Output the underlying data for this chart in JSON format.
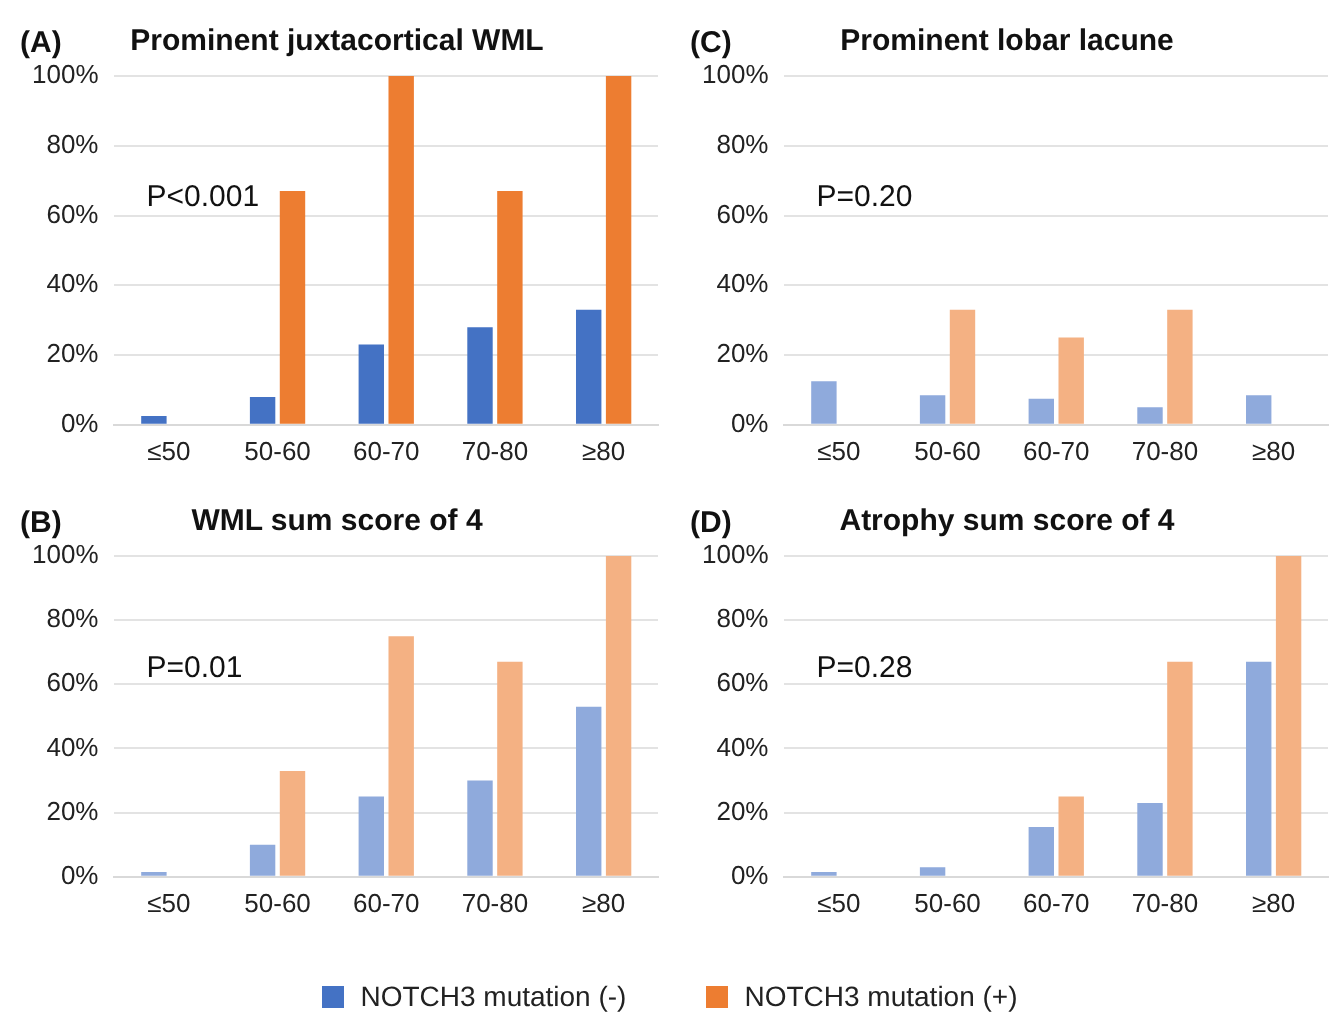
{
  "chart_data": [
    {
      "type": "bar",
      "title": "Prominent juxtacortical WML",
      "annotations": [
        "(A)",
        "P<0.001"
      ],
      "categories": [
        "≤50",
        "50-60",
        "60-70",
        "70-80",
        "≥80"
      ],
      "legend": "bottom",
      "grid": "y",
      "ylim": [
        0,
        100
      ],
      "yticks": [
        {
          "value": 0,
          "label": "0%"
        },
        {
          "value": 20,
          "label": "20%"
        },
        {
          "value": 40,
          "label": "40%"
        },
        {
          "value": 60,
          "label": "60%"
        },
        {
          "value": 80,
          "label": "80%"
        },
        {
          "value": 100,
          "label": "100%"
        }
      ],
      "series": [
        {
          "name": "NOTCH3 mutation (-)",
          "color": "#4472c4",
          "values": [
            2.5,
            8,
            23,
            28,
            33
          ]
        },
        {
          "name": "NOTCH3 mutation (+)",
          "color": "#ed7d31",
          "values": [
            0,
            67,
            100,
            67,
            100
          ]
        }
      ]
    },
    {
      "type": "bar",
      "title": "Prominent lobar lacune",
      "annotations": [
        "(C)",
        "P=0.20"
      ],
      "categories": [
        "≤50",
        "50-60",
        "60-70",
        "70-80",
        "≥80"
      ],
      "grid": "y",
      "ylim": [
        0,
        100
      ],
      "yticks": [
        {
          "value": 0,
          "label": "0%"
        },
        {
          "value": 20,
          "label": "20%"
        },
        {
          "value": 40,
          "label": "40%"
        },
        {
          "value": 60,
          "label": "60%"
        },
        {
          "value": 80,
          "label": "80%"
        },
        {
          "value": 100,
          "label": "100%"
        }
      ],
      "series": [
        {
          "color": "#8faadc",
          "values": [
            12.5,
            8.5,
            7.5,
            5,
            8.5
          ]
        },
        {
          "color": "#f4b183",
          "values": [
            0,
            33,
            25,
            33,
            0
          ]
        }
      ]
    },
    {
      "type": "bar",
      "title": "WML sum score of 4",
      "annotations": [
        "(B)",
        "P=0.01"
      ],
      "categories": [
        "≤50",
        "50-60",
        "60-70",
        "70-80",
        "≥80"
      ],
      "grid": "y",
      "ylim": [
        0,
        100
      ],
      "yticks": [
        {
          "value": 0,
          "label": "0%"
        },
        {
          "value": 20,
          "label": "20%"
        },
        {
          "value": 40,
          "label": "40%"
        },
        {
          "value": 60,
          "label": "60%"
        },
        {
          "value": 80,
          "label": "80%"
        },
        {
          "value": 100,
          "label": "100%"
        }
      ],
      "series": [
        {
          "color": "#8faadc",
          "values": [
            1.5,
            10,
            25,
            30,
            53
          ]
        },
        {
          "color": "#f4b183",
          "values": [
            0,
            33,
            75,
            67,
            100
          ]
        }
      ]
    },
    {
      "type": "bar",
      "title": "Atrophy sum score of 4",
      "annotations": [
        "(D)",
        "P=0.28"
      ],
      "categories": [
        "≤50",
        "50-60",
        "60-70",
        "70-80",
        "≥80"
      ],
      "grid": "y",
      "ylim": [
        0,
        100
      ],
      "yticks": [
        {
          "value": 0,
          "label": "0%"
        },
        {
          "value": 20,
          "label": "20%"
        },
        {
          "value": 40,
          "label": "40%"
        },
        {
          "value": 60,
          "label": "60%"
        },
        {
          "value": 80,
          "label": "80%"
        },
        {
          "value": 100,
          "label": "100%"
        }
      ],
      "series": [
        {
          "color": "#8faadc",
          "values": [
            1.5,
            3,
            15.5,
            23,
            67
          ]
        },
        {
          "color": "#f4b183",
          "values": [
            0,
            0,
            25,
            67,
            100
          ]
        }
      ]
    }
  ]
}
